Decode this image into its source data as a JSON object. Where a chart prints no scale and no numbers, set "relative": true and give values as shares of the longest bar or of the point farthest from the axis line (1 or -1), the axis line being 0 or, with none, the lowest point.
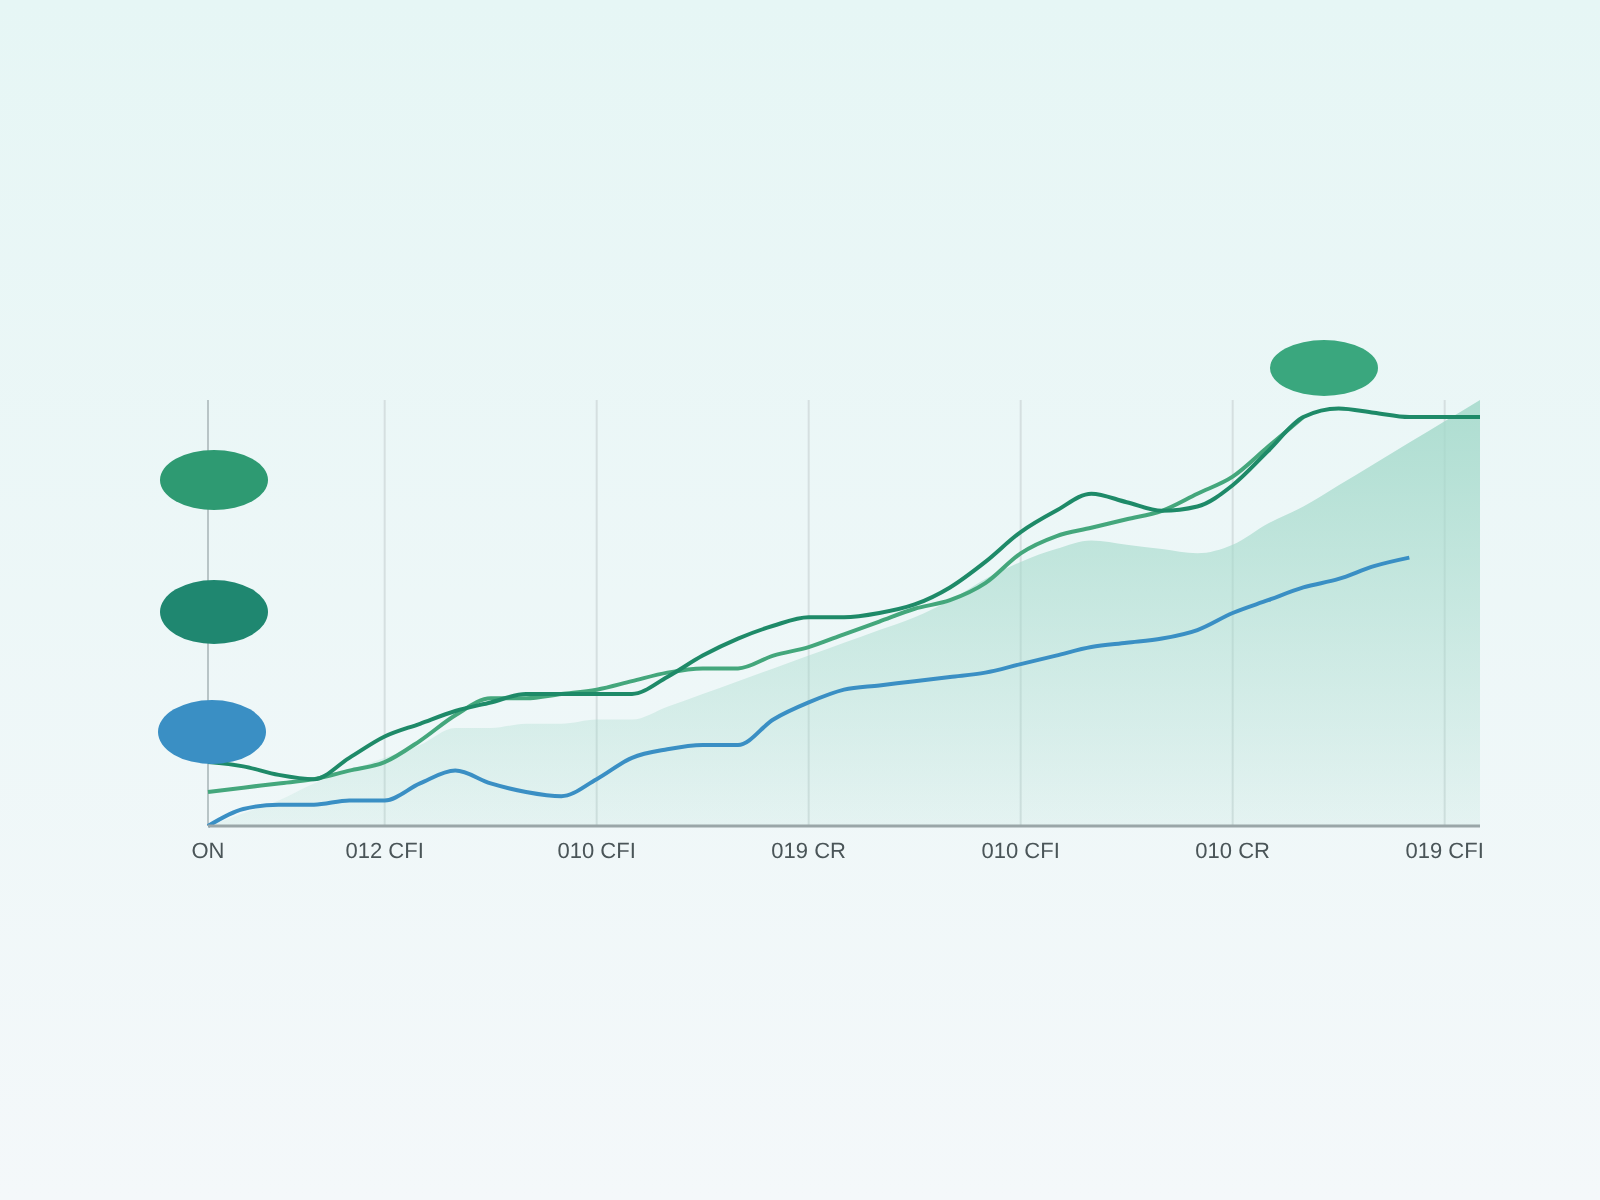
{
  "chart_data": {
    "type": "line",
    "relative": true,
    "grid": "x",
    "marker": "none",
    "line_style": "solid",
    "categories": [
      "ON",
      null,
      null,
      null,
      null,
      "012 CFI",
      null,
      null,
      null,
      null,
      null,
      "010 CFI",
      null,
      null,
      null,
      null,
      null,
      "019 CR",
      null,
      null,
      null,
      null,
      null,
      "010 CFI",
      null,
      null,
      null,
      null,
      null,
      "010 CR",
      null,
      null,
      null,
      null,
      null,
      "019 CFI",
      null
    ],
    "series": [
      {
        "type": "area",
        "color": "#a3d9ca",
        "values": [
          0,
          0.03,
          0.06,
          0.1,
          0.13,
          0.16,
          0.19,
          0.23,
          0.23,
          0.24,
          0.24,
          0.25,
          0.25,
          0.28,
          0.31,
          0.34,
          0.37,
          0.4,
          0.43,
          0.46,
          0.49,
          0.53,
          0.58,
          0.62,
          0.65,
          0.67,
          0.66,
          0.65,
          0.64,
          0.66,
          0.71,
          0.75,
          0.8,
          0.85,
          0.9,
          0.95,
          1
        ]
      },
      {
        "color": "#3a8fc4",
        "values": [
          0,
          0.04,
          0.05,
          0.05,
          0.06,
          0.06,
          0.1,
          0.13,
          0.1,
          0.08,
          0.07,
          0.11,
          0.16,
          0.18,
          0.19,
          0.19,
          0.25,
          0.29,
          0.32,
          0.33,
          0.34,
          0.35,
          0.36,
          0.38,
          0.4,
          0.42,
          0.43,
          0.44,
          0.46,
          0.5,
          0.53,
          0.56,
          0.58,
          0.61,
          0.63,
          null,
          null
        ]
      },
      {
        "color": "#44a77c",
        "values": [
          0.08,
          0.09,
          0.1,
          0.11,
          0.13,
          0.15,
          0.2,
          0.26,
          0.3,
          0.3,
          0.31,
          0.32,
          0.34,
          0.36,
          0.37,
          0.37,
          0.4,
          0.42,
          0.45,
          0.48,
          0.51,
          0.53,
          0.57,
          0.64,
          0.68,
          0.7,
          0.72,
          0.74,
          0.78,
          0.82,
          0.89,
          0.96,
          null,
          null,
          null,
          null,
          null
        ]
      },
      {
        "color": "#1e8a68",
        "values": [
          0.15,
          0.14,
          0.12,
          0.11,
          0.16,
          0.21,
          0.24,
          0.27,
          0.29,
          0.31,
          0.31,
          0.31,
          0.31,
          0.35,
          0.4,
          0.44,
          0.47,
          0.49,
          0.49,
          0.5,
          0.52,
          0.56,
          0.62,
          0.69,
          0.74,
          0.78,
          0.76,
          0.74,
          0.75,
          0.8,
          0.88,
          0.96,
          0.98,
          0.97,
          0.96,
          0.96,
          0.96
        ]
      }
    ]
  }
}
